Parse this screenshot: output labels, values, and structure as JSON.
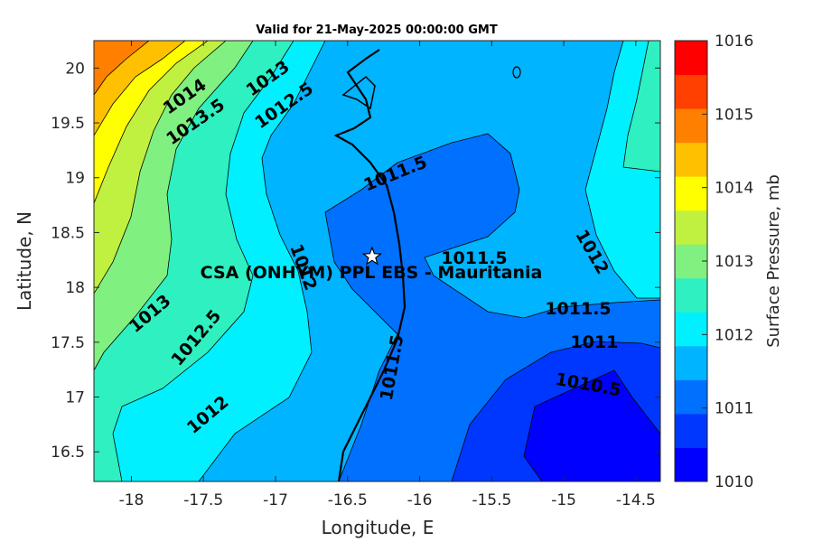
{
  "title": "Valid for 21-May-2025 00:00:00 GMT",
  "x_axis": {
    "label": "Longitude, E",
    "ticks": [
      {
        "label": "-18",
        "value": -18
      },
      {
        "label": "-17.5",
        "value": -17.5
      },
      {
        "label": "-17",
        "value": -17
      },
      {
        "label": "-16.5",
        "value": -16.5
      },
      {
        "label": "-16",
        "value": -16
      },
      {
        "label": "-15.5",
        "value": -15.5
      },
      {
        "label": "-15",
        "value": -15
      },
      {
        "label": "-14.5",
        "value": -14.5
      }
    ]
  },
  "y_axis": {
    "label": "Latitude, N",
    "ticks": [
      {
        "label": "20",
        "value": 20
      },
      {
        "label": "19.5",
        "value": 19.5
      },
      {
        "label": "19",
        "value": 19
      },
      {
        "label": "18.5",
        "value": 18.5
      },
      {
        "label": "18",
        "value": 18
      },
      {
        "label": "17.5",
        "value": 17.5
      },
      {
        "label": "17",
        "value": 17
      },
      {
        "label": "16.5",
        "value": 16.5
      }
    ]
  },
  "colorbar": {
    "label": "Surface Pressure, mb",
    "tick_labels": [
      "1010",
      "1011",
      "1012",
      "1013",
      "1014",
      "1015",
      "1016"
    ],
    "colors": [
      "#0000ff",
      "#0037ff",
      "#0070ff",
      "#00b4ff",
      "#00f0ff",
      "#2ef0c0",
      "#80f080",
      "#c0f040",
      "#ffff00",
      "#ffc000",
      "#ff8000",
      "#ff4000",
      "#ff0000"
    ]
  },
  "station": {
    "label": "CSA (ONHYM) PPL EBS  - Mauritania",
    "symbol": "star-icon",
    "lon": -16.33,
    "lat": 18.28
  },
  "contour_labels": [
    {
      "text": "1014"
    },
    {
      "text": "1013.5"
    },
    {
      "text": "1013"
    },
    {
      "text": "1012.5"
    },
    {
      "text": "1011.5"
    },
    {
      "text": "1012"
    },
    {
      "text": "1011.5"
    },
    {
      "text": "1012"
    },
    {
      "text": "1013"
    },
    {
      "text": "1012.5"
    },
    {
      "text": "1011.5"
    },
    {
      "text": "1011.5"
    },
    {
      "text": "1011"
    },
    {
      "text": "1010.5"
    },
    {
      "text": "1012"
    }
  ]
}
